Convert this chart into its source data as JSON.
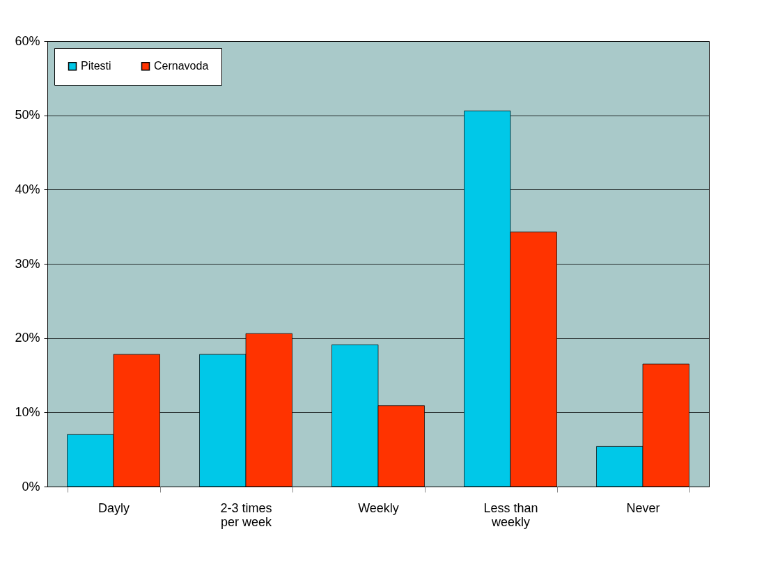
{
  "chart_data": {
    "type": "bar",
    "categories": [
      "Dayly",
      "2-3 times\nper week",
      "Weekly",
      "Less than\nweekly",
      "Never"
    ],
    "series": [
      {
        "name": "Pitesti",
        "color": "#00c8e8",
        "values": [
          7.0,
          17.8,
          19.1,
          50.6,
          5.4
        ]
      },
      {
        "name": "Cernavoda",
        "color": "#ff3300",
        "values": [
          17.8,
          20.6,
          10.9,
          34.3,
          16.5
        ]
      }
    ],
    "ylim": [
      0,
      60
    ],
    "yticks": [
      {
        "value": 0,
        "label": "0%"
      },
      {
        "value": 10,
        "label": "10%"
      },
      {
        "value": 20,
        "label": "20%"
      },
      {
        "value": 30,
        "label": "30%"
      },
      {
        "value": 40,
        "label": "40%"
      },
      {
        "value": 50,
        "label": "50%"
      },
      {
        "value": 60,
        "label": "60%"
      }
    ],
    "grid": "y",
    "legend": "top left"
  }
}
